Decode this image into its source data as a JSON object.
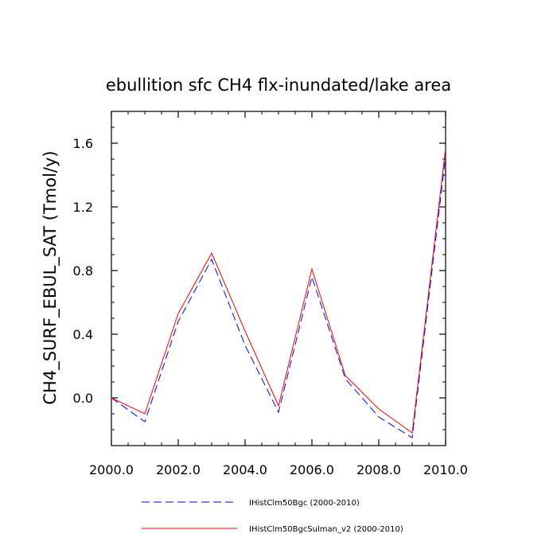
{
  "chart_data": {
    "type": "line",
    "title": "ebullition sfc CH4 flx-inundated/lake area",
    "ylabel": "CH4_SURF_EBUL_SAT  (Tmol/y)",
    "xlabel": "",
    "xlim": [
      2000,
      2010
    ],
    "ylim": [
      -0.3,
      1.8
    ],
    "x_ticks": [
      2000,
      2002,
      2004,
      2006,
      2008,
      2010
    ],
    "x_tick_labels": [
      "2000.0",
      "2002.0",
      "2004.0",
      "2006.0",
      "2008.0",
      "2010.0"
    ],
    "y_ticks": [
      0.0,
      0.4,
      0.8,
      1.2,
      1.6
    ],
    "y_tick_labels": [
      "0.0",
      "0.4",
      "0.8",
      "1.2",
      "1.6"
    ],
    "x_minor_step": 0.5,
    "y_minor_step": 0.1,
    "grid": false,
    "legend_position": "bottom",
    "x": [
      2000,
      2001,
      2002,
      2003,
      2004,
      2005,
      2006,
      2007,
      2008,
      2009,
      2010
    ],
    "series": [
      {
        "name": "IHistClm50Bgc (2000-2010)",
        "color": "#0000ff",
        "dash": "dashed",
        "values": [
          0.0,
          -0.15,
          0.48,
          0.87,
          0.33,
          -0.09,
          0.76,
          0.12,
          -0.12,
          -0.25,
          1.52
        ]
      },
      {
        "name": "IHistClm50BgcSulman_v2 (2000-2010)",
        "color": "#ff0000",
        "dash": "solid",
        "values": [
          0.0,
          -0.1,
          0.53,
          0.91,
          0.42,
          -0.05,
          0.81,
          0.14,
          -0.07,
          -0.22,
          1.57
        ]
      }
    ]
  }
}
